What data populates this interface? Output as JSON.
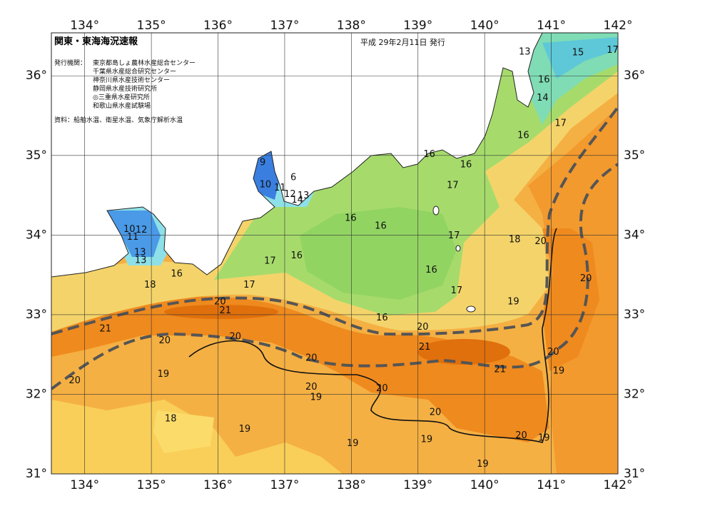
{
  "header": {
    "title": "関東・東海海況速報",
    "date": "平成 29年2月11日 発行",
    "issuers_label": "発行機関：",
    "issuers": [
      "東京都島しょ農林水産総合センター",
      "千葉県水産総合研究センター",
      "神奈川県水産技術センター",
      "静岡県水産技術研究所",
      "◎三重県水産研究所",
      "和歌山県水産試験場"
    ],
    "source": "資料：船舶水温、衛星水温、気象庁解析水温"
  },
  "map": {
    "lon_range": [
      133.5,
      142
    ],
    "lat_range": [
      31,
      36.54
    ],
    "lon_ticks": [
      {
        "value": 134,
        "label": "134°"
      },
      {
        "value": 135,
        "label": "135°"
      },
      {
        "value": 136,
        "label": "136°"
      },
      {
        "value": 137,
        "label": "137°"
      },
      {
        "value": 138,
        "label": "138°"
      },
      {
        "value": 139,
        "label": "139°"
      },
      {
        "value": 140,
        "label": "140°"
      },
      {
        "value": 141,
        "label": "141°"
      },
      {
        "value": 142,
        "label": "142°"
      }
    ],
    "lat_ticks": [
      {
        "value": 31,
        "label": "31°"
      },
      {
        "value": 32,
        "label": "32°"
      },
      {
        "value": 33,
        "label": "33°"
      },
      {
        "value": 34,
        "label": "34°"
      },
      {
        "value": 35,
        "label": "35°"
      },
      {
        "value": 36,
        "label": "36°"
      }
    ],
    "contour_labels": [
      {
        "value": 13,
        "lon": 140.6,
        "lat": 36.3
      },
      {
        "value": 15,
        "lon": 141.4,
        "lat": 36.29
      },
      {
        "value": 17,
        "lon": 141.92,
        "lat": 36.32
      },
      {
        "value": 16,
        "lon": 140.89,
        "lat": 35.95
      },
      {
        "value": 14,
        "lon": 140.87,
        "lat": 35.72
      },
      {
        "value": 17,
        "lon": 141.14,
        "lat": 35.4
      },
      {
        "value": 16,
        "lon": 140.58,
        "lat": 35.25
      },
      {
        "value": 16,
        "lon": 139.17,
        "lat": 35.01
      },
      {
        "value": 16,
        "lon": 139.72,
        "lat": 34.88
      },
      {
        "value": 17,
        "lon": 139.52,
        "lat": 34.62
      },
      {
        "value": 9,
        "lon": 136.67,
        "lat": 34.91
      },
      {
        "value": 10,
        "lon": 136.71,
        "lat": 34.63
      },
      {
        "value": 11,
        "lon": 136.93,
        "lat": 34.59
      },
      {
        "value": 12,
        "lon": 137.08,
        "lat": 34.51
      },
      {
        "value": 13,
        "lon": 137.28,
        "lat": 34.49
      },
      {
        "value": 14,
        "lon": 137.19,
        "lat": 34.44
      },
      {
        "value": 6,
        "lon": 137.13,
        "lat": 34.72
      },
      {
        "value": 16,
        "lon": 137.99,
        "lat": 34.21
      },
      {
        "value": 16,
        "lon": 138.44,
        "lat": 34.11
      },
      {
        "value": 17,
        "lon": 139.54,
        "lat": 33.99
      },
      {
        "value": 18,
        "lon": 140.45,
        "lat": 33.94
      },
      {
        "value": 20,
        "lon": 140.84,
        "lat": 33.92
      },
      {
        "value": 10,
        "lon": 134.67,
        "lat": 34.07
      },
      {
        "value": 12,
        "lon": 134.85,
        "lat": 34.06
      },
      {
        "value": 11,
        "lon": 134.72,
        "lat": 33.97
      },
      {
        "value": 13,
        "lon": 134.83,
        "lat": 33.78
      },
      {
        "value": 13,
        "lon": 134.84,
        "lat": 33.68
      },
      {
        "value": 16,
        "lon": 137.18,
        "lat": 33.74
      },
      {
        "value": 17,
        "lon": 136.78,
        "lat": 33.67
      },
      {
        "value": 16,
        "lon": 139.2,
        "lat": 33.56
      },
      {
        "value": 16,
        "lon": 135.38,
        "lat": 33.51
      },
      {
        "value": 20,
        "lon": 141.52,
        "lat": 33.45
      },
      {
        "value": 17,
        "lon": 136.47,
        "lat": 33.37
      },
      {
        "value": 18,
        "lon": 134.98,
        "lat": 33.37
      },
      {
        "value": 17,
        "lon": 139.58,
        "lat": 33.3
      },
      {
        "value": 19,
        "lon": 140.43,
        "lat": 33.16
      },
      {
        "value": 20,
        "lon": 136.03,
        "lat": 33.16
      },
      {
        "value": 21,
        "lon": 136.11,
        "lat": 33.05
      },
      {
        "value": 16,
        "lon": 138.46,
        "lat": 32.96
      },
      {
        "value": 20,
        "lon": 139.07,
        "lat": 32.84
      },
      {
        "value": 21,
        "lon": 134.31,
        "lat": 32.82
      },
      {
        "value": 20,
        "lon": 135.2,
        "lat": 32.67
      },
      {
        "value": 20,
        "lon": 136.26,
        "lat": 32.72
      },
      {
        "value": 21,
        "lon": 139.1,
        "lat": 32.59
      },
      {
        "value": 20,
        "lon": 141.03,
        "lat": 32.53
      },
      {
        "value": 20,
        "lon": 137.4,
        "lat": 32.45
      },
      {
        "value": 21,
        "lon": 140.23,
        "lat": 32.31
      },
      {
        "value": 19,
        "lon": 141.11,
        "lat": 32.29
      },
      {
        "value": 19,
        "lon": 135.18,
        "lat": 32.25
      },
      {
        "value": 20,
        "lon": 133.85,
        "lat": 32.17
      },
      {
        "value": 20,
        "lon": 137.4,
        "lat": 32.09
      },
      {
        "value": 20,
        "lon": 138.46,
        "lat": 32.07
      },
      {
        "value": 19,
        "lon": 137.47,
        "lat": 31.96
      },
      {
        "value": 20,
        "lon": 139.26,
        "lat": 31.77
      },
      {
        "value": 18,
        "lon": 135.29,
        "lat": 31.69
      },
      {
        "value": 19,
        "lon": 136.4,
        "lat": 31.56
      },
      {
        "value": 20,
        "lon": 140.55,
        "lat": 31.48
      },
      {
        "value": 19,
        "lon": 140.89,
        "lat": 31.45
      },
      {
        "value": 19,
        "lon": 139.13,
        "lat": 31.43
      },
      {
        "value": 19,
        "lon": 138.02,
        "lat": 31.38
      },
      {
        "value": 19,
        "lon": 139.97,
        "lat": 31.12
      }
    ]
  }
}
